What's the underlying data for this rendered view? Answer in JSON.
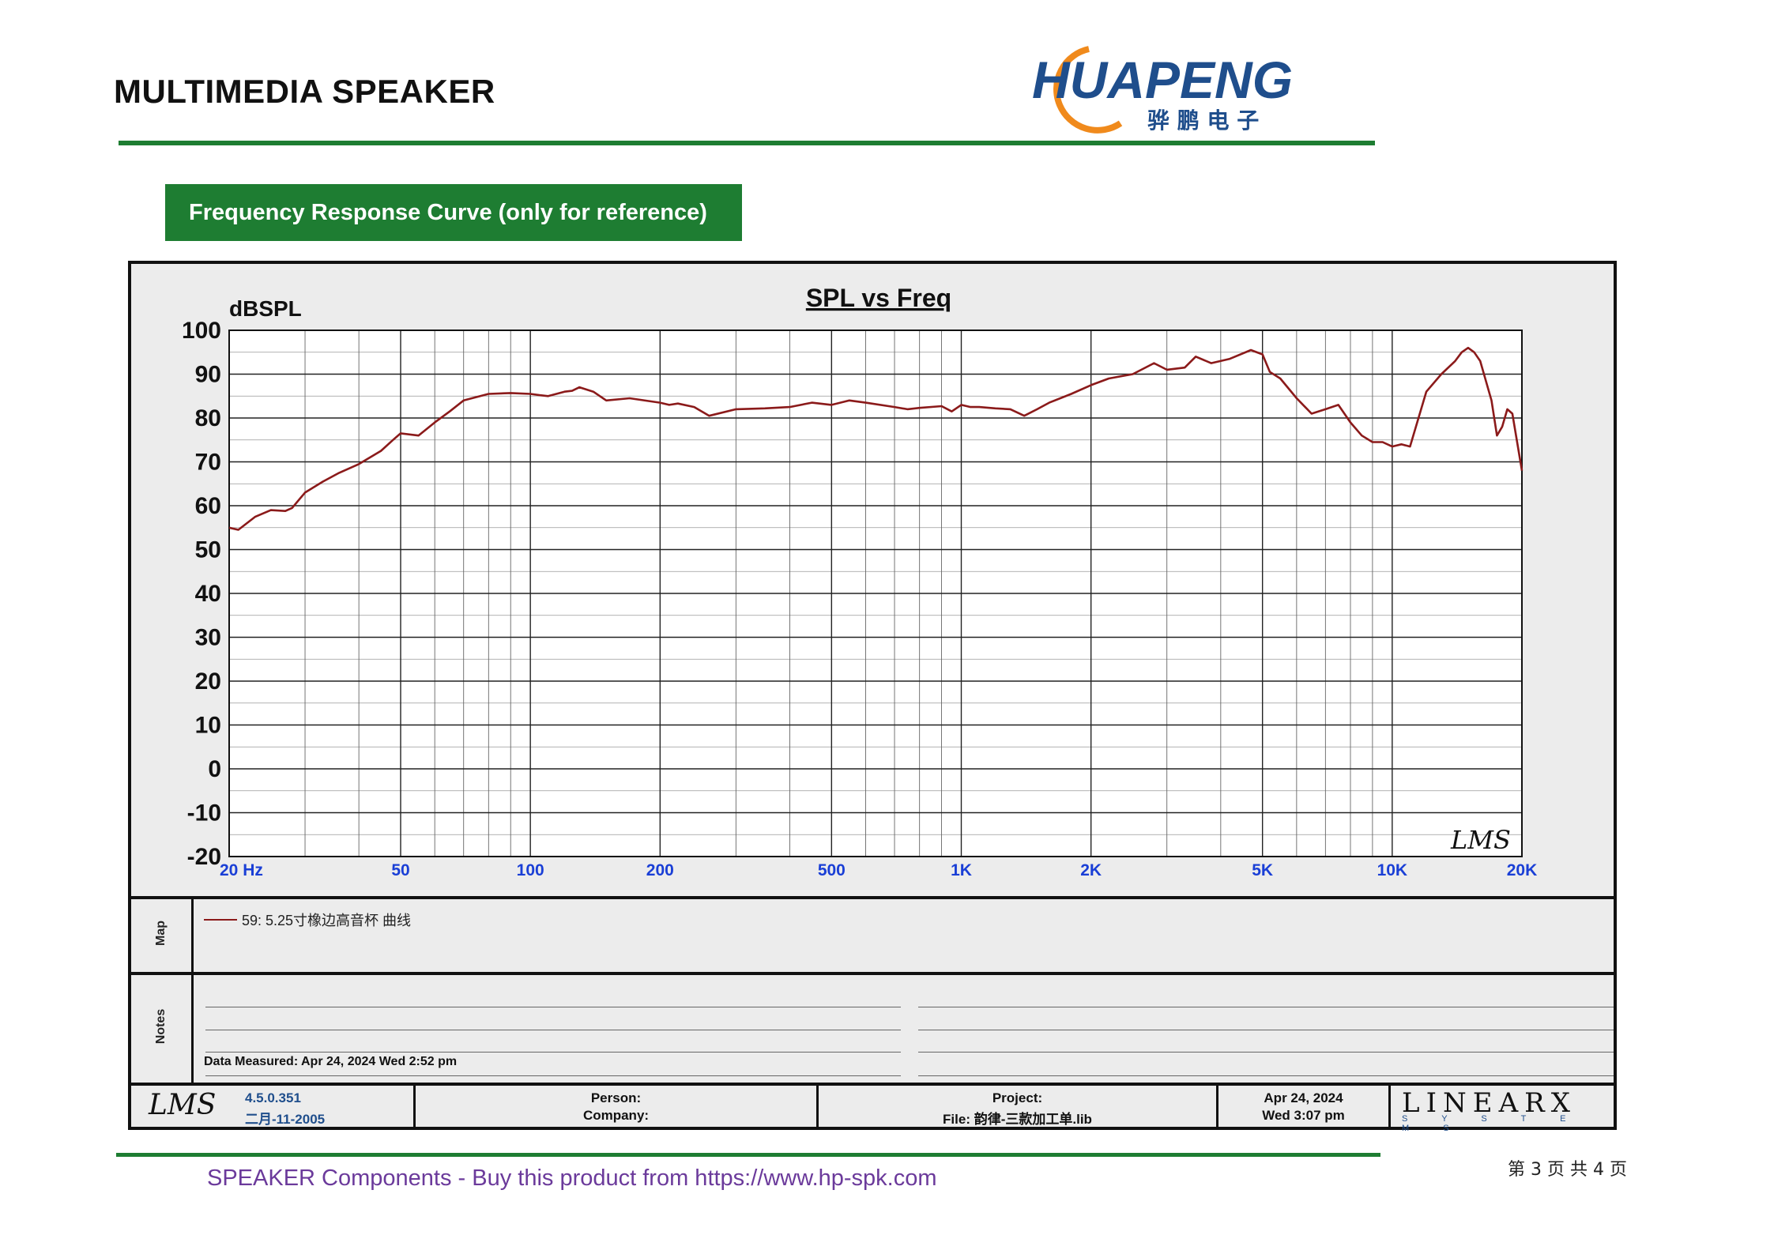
{
  "header": {
    "title": "MULTIMEDIA SPEAKER",
    "logo_text": "HUAPENG",
    "logo_cn": "骅 鹏 电 子"
  },
  "section": {
    "label": "Frequency Response Curve (only for reference)"
  },
  "chart_data": {
    "type": "line",
    "title": "SPL vs Freq",
    "ylabel": "dBSPL",
    "xlabel": "",
    "x_scale": "log",
    "xlim": [
      20,
      20000
    ],
    "ylim": [
      -20,
      100
    ],
    "yticks": [
      100,
      90,
      80,
      70,
      60,
      50,
      40,
      30,
      20,
      10,
      0,
      -10,
      -20
    ],
    "ytick_labels": [
      "100",
      "90",
      "80",
      "70",
      "60",
      "50",
      "40",
      "30",
      "20",
      "10",
      "0",
      "-10",
      "-20"
    ],
    "xticks": [
      20,
      50,
      100,
      200,
      500,
      1000,
      2000,
      5000,
      10000,
      20000
    ],
    "xtick_labels": [
      "20  Hz",
      "50",
      "100",
      "200",
      "500",
      "1K",
      "2K",
      "5K",
      "10K",
      "20K"
    ],
    "grid": true,
    "series": [
      {
        "name": "59: 5.25寸橡边高音杯  曲线",
        "color": "#8b1a1a",
        "x": [
          20,
          21,
          23,
          25,
          27,
          28,
          30,
          33,
          36,
          40,
          45,
          48,
          50,
          55,
          60,
          65,
          70,
          80,
          90,
          100,
          105,
          110,
          120,
          125,
          130,
          140,
          150,
          170,
          200,
          210,
          220,
          240,
          260,
          300,
          350,
          400,
          450,
          500,
          550,
          600,
          700,
          750,
          800,
          900,
          950,
          1000,
          1050,
          1100,
          1200,
          1300,
          1400,
          1500,
          1600,
          1800,
          2000,
          2200,
          2500,
          2800,
          3000,
          3300,
          3500,
          3800,
          4200,
          4700,
          5000,
          5200,
          5500,
          6000,
          6500,
          7000,
          7500,
          8000,
          8500,
          9000,
          9500,
          10000,
          10500,
          11000,
          12000,
          13000,
          14000,
          14500,
          15000,
          15500,
          16000,
          17000,
          17500,
          18000,
          18500,
          19000,
          20000
        ],
        "y": [
          55,
          54.5,
          57.5,
          59,
          58.8,
          59.5,
          63,
          65.5,
          67.5,
          69.5,
          72.5,
          75,
          76.5,
          76,
          79,
          81.5,
          84,
          85.5,
          85.7,
          85.5,
          85.2,
          85,
          86,
          86.2,
          87,
          86,
          84,
          84.5,
          83.5,
          83,
          83.3,
          82.5,
          80.5,
          82,
          82.2,
          82.5,
          83.5,
          83,
          84,
          83.5,
          82.5,
          82,
          82.3,
          82.7,
          81.5,
          83,
          82.5,
          82.5,
          82.2,
          82,
          80.5,
          82,
          83.5,
          85.5,
          87.5,
          89,
          90,
          92.5,
          91,
          91.5,
          94,
          92.5,
          93.5,
          95.5,
          94.5,
          90.5,
          89,
          84.5,
          81,
          82,
          83,
          79,
          76,
          74.5,
          74.5,
          73.5,
          74,
          73.5,
          86,
          90,
          93,
          95,
          96,
          95,
          93,
          84,
          76,
          78,
          82,
          81,
          68
        ]
      }
    ]
  },
  "map": {
    "label": "Map",
    "legend": "59: 5.25寸橡边高音杯  曲线"
  },
  "notes": {
    "label": "Notes",
    "measured": "Data Measured: Apr 24, 2024  Wed  2:52 pm"
  },
  "footer_block": {
    "version": "4.5.0.351",
    "version_date": "二月-11-2005",
    "person": "Person:",
    "company": "Company:",
    "project": "Project:",
    "file": "File: 韵律-三款加工单.lib",
    "date": "Apr 24, 2024",
    "time": "Wed  3:07 pm",
    "brand": "LINEARX",
    "brand_sub": "S Y S T E M S"
  },
  "lms_mark": "LMS",
  "footer": {
    "text": "SPEAKER Components - Buy this product from  https://www.hp-spk.com",
    "page": "第 3 页 共 4 页"
  },
  "colors": {
    "accent": "#1e7d32",
    "curve": "#8b1a1a",
    "footer_text": "#6b3a9b"
  }
}
